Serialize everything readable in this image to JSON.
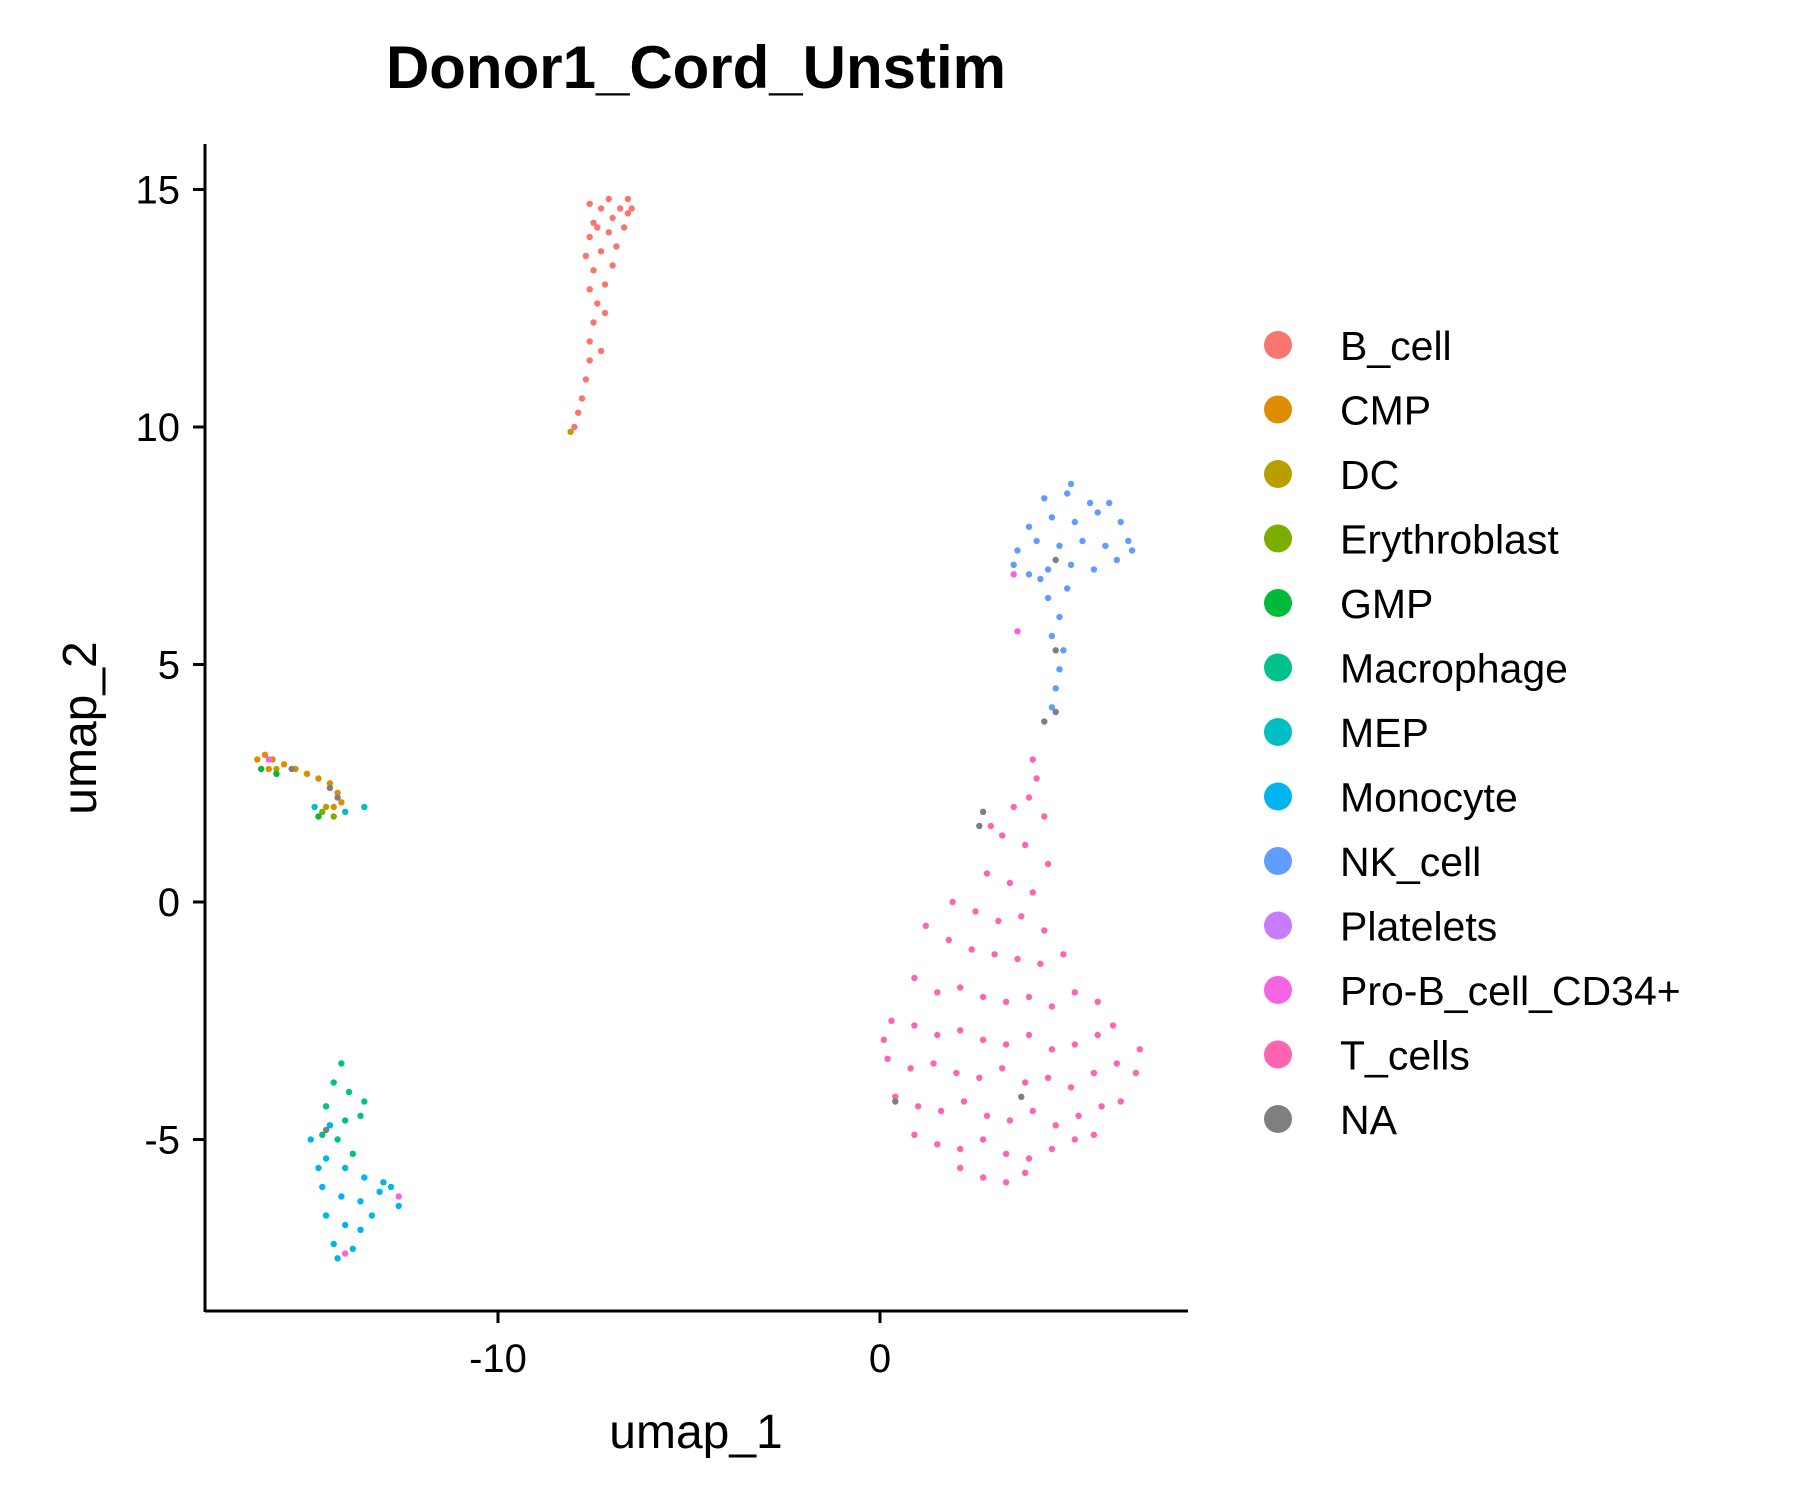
{
  "chart_data": {
    "type": "scatter",
    "title": "Donor1_Cord_Unstim",
    "xlabel": "umap_1",
    "ylabel": "umap_2",
    "xlim": [
      -17.7,
      8.0
    ],
    "ylim": [
      -8.4,
      16.0
    ],
    "xticks": [
      -10,
      0
    ],
    "xtick_labels": [
      "-10",
      "0"
    ],
    "yticks": [
      15,
      10,
      5,
      0,
      -5
    ],
    "ytick_labels": [
      "15",
      "10",
      "5",
      "0",
      "-5"
    ],
    "grid": false,
    "legend_position": "right",
    "legend": [
      {
        "name": "B_cell",
        "color": "#F8766D"
      },
      {
        "name": "CMP",
        "color": "#DE8C00"
      },
      {
        "name": "DC",
        "color": "#B79F00"
      },
      {
        "name": "Erythroblast",
        "color": "#7CAE00"
      },
      {
        "name": "GMP",
        "color": "#00BA38"
      },
      {
        "name": "Macrophage",
        "color": "#00C08B"
      },
      {
        "name": "MEP",
        "color": "#00BFC4"
      },
      {
        "name": "Monocyte",
        "color": "#00B4F0"
      },
      {
        "name": "NK_cell",
        "color": "#619CFF"
      },
      {
        "name": "Platelets",
        "color": "#C77CFF"
      },
      {
        "name": "Pro-B_cell_CD34+",
        "color": "#F564E3"
      },
      {
        "name": "T_cells",
        "color": "#FF64B0"
      },
      {
        "name": "NA",
        "color": "#7F7F7F"
      }
    ],
    "series": [
      {
        "name": "B_cell",
        "color": "#F8766D",
        "points": [
          [
            -8.0,
            10.0
          ],
          [
            -7.9,
            10.3
          ],
          [
            -7.8,
            10.6
          ],
          [
            -7.7,
            11.0
          ],
          [
            -7.6,
            11.4
          ],
          [
            -7.6,
            11.8
          ],
          [
            -7.5,
            12.2
          ],
          [
            -7.4,
            12.6
          ],
          [
            -7.6,
            12.9
          ],
          [
            -7.2,
            13.0
          ],
          [
            -7.5,
            13.3
          ],
          [
            -7.0,
            13.4
          ],
          [
            -7.7,
            13.6
          ],
          [
            -7.3,
            13.7
          ],
          [
            -6.9,
            13.8
          ],
          [
            -7.6,
            14.0
          ],
          [
            -7.1,
            14.1
          ],
          [
            -6.7,
            14.2
          ],
          [
            -7.5,
            14.3
          ],
          [
            -7.0,
            14.4
          ],
          [
            -6.6,
            14.5
          ],
          [
            -7.3,
            14.6
          ],
          [
            -6.8,
            14.6
          ],
          [
            -6.5,
            14.6
          ],
          [
            -7.6,
            14.7
          ],
          [
            -7.1,
            14.8
          ],
          [
            -6.6,
            14.8
          ],
          [
            -7.4,
            14.2
          ],
          [
            -7.2,
            12.4
          ],
          [
            -7.3,
            11.6
          ]
        ]
      },
      {
        "name": "CMP",
        "color": "#DE8C00",
        "points": [
          [
            -16.3,
            3.0
          ],
          [
            -16.1,
            3.1
          ],
          [
            -15.9,
            3.0
          ],
          [
            -15.6,
            2.9
          ],
          [
            -15.3,
            2.8
          ],
          [
            -15.0,
            2.7
          ],
          [
            -14.7,
            2.6
          ],
          [
            -14.4,
            2.5
          ],
          [
            -14.2,
            2.3
          ],
          [
            -14.1,
            2.1
          ],
          [
            -14.3,
            2.0
          ],
          [
            -16.0,
            2.8
          ]
        ]
      },
      {
        "name": "DC",
        "color": "#B79F00",
        "points": [
          [
            -15.8,
            2.8
          ],
          [
            -14.5,
            2.0
          ],
          [
            -8.1,
            9.9
          ]
        ]
      },
      {
        "name": "Erythroblast",
        "color": "#7CAE00",
        "points": [
          [
            -14.6,
            1.9
          ],
          [
            -14.3,
            1.8
          ],
          [
            -14.4,
            -4.7
          ]
        ]
      },
      {
        "name": "GMP",
        "color": "#00BA38",
        "points": [
          [
            -16.2,
            2.8
          ],
          [
            -15.8,
            2.7
          ],
          [
            -14.7,
            1.8
          ]
        ]
      },
      {
        "name": "Macrophage",
        "color": "#00C08B",
        "points": [
          [
            -14.1,
            -3.4
          ],
          [
            -14.3,
            -3.8
          ],
          [
            -13.9,
            -4.0
          ],
          [
            -14.5,
            -4.3
          ],
          [
            -14.0,
            -4.6
          ],
          [
            -13.6,
            -4.5
          ],
          [
            -14.2,
            -5.0
          ],
          [
            -13.8,
            -5.3
          ],
          [
            -14.6,
            -4.9
          ],
          [
            -13.5,
            -4.2
          ]
        ]
      },
      {
        "name": "MEP",
        "color": "#00BFC4",
        "points": [
          [
            -14.8,
            2.0
          ],
          [
            -13.5,
            2.0
          ],
          [
            -14.0,
            1.9
          ]
        ]
      },
      {
        "name": "Monocyte",
        "color": "#00B4F0",
        "points": [
          [
            -14.9,
            -5.0
          ],
          [
            -14.5,
            -5.4
          ],
          [
            -14.0,
            -5.6
          ],
          [
            -13.5,
            -5.8
          ],
          [
            -13.0,
            -5.9
          ],
          [
            -14.6,
            -6.0
          ],
          [
            -14.1,
            -6.2
          ],
          [
            -13.6,
            -6.3
          ],
          [
            -13.1,
            -6.1
          ],
          [
            -14.5,
            -6.6
          ],
          [
            -14.0,
            -6.8
          ],
          [
            -13.6,
            -6.9
          ],
          [
            -14.3,
            -7.2
          ],
          [
            -13.8,
            -7.3
          ],
          [
            -14.2,
            -7.5
          ],
          [
            -12.8,
            -6.0
          ],
          [
            -12.6,
            -6.4
          ],
          [
            -14.7,
            -5.6
          ],
          [
            -13.3,
            -6.6
          ],
          [
            -14.4,
            -4.7
          ]
        ]
      },
      {
        "name": "NK_cell",
        "color": "#619CFF",
        "points": [
          [
            4.5,
            4.1
          ],
          [
            4.6,
            4.5
          ],
          [
            4.7,
            4.9
          ],
          [
            4.8,
            5.3
          ],
          [
            4.5,
            5.6
          ],
          [
            4.7,
            6.0
          ],
          [
            4.4,
            6.4
          ],
          [
            4.9,
            6.6
          ],
          [
            3.9,
            6.9
          ],
          [
            4.4,
            7.0
          ],
          [
            5.0,
            7.1
          ],
          [
            5.6,
            7.0
          ],
          [
            6.2,
            7.2
          ],
          [
            3.6,
            7.4
          ],
          [
            4.1,
            7.6
          ],
          [
            4.7,
            7.5
          ],
          [
            5.3,
            7.6
          ],
          [
            5.9,
            7.5
          ],
          [
            6.5,
            7.6
          ],
          [
            3.9,
            7.9
          ],
          [
            4.5,
            8.1
          ],
          [
            5.1,
            8.0
          ],
          [
            5.7,
            8.2
          ],
          [
            6.3,
            8.0
          ],
          [
            4.3,
            8.5
          ],
          [
            4.9,
            8.6
          ],
          [
            5.5,
            8.4
          ],
          [
            6.0,
            8.4
          ],
          [
            5.0,
            8.8
          ],
          [
            3.5,
            7.1
          ],
          [
            6.6,
            7.4
          ],
          [
            4.2,
            6.8
          ]
        ]
      },
      {
        "name": "Pro-B_cell_CD34+",
        "color": "#F564E3",
        "points": [
          [
            -16.0,
            3.0
          ],
          [
            -14.0,
            -7.4
          ],
          [
            -12.6,
            -6.2
          ],
          [
            3.5,
            6.9
          ],
          [
            3.6,
            5.7
          ]
        ]
      },
      {
        "name": "T_cells",
        "color": "#FF64B0",
        "points": [
          [
            4.0,
            3.0
          ],
          [
            4.1,
            2.6
          ],
          [
            3.9,
            2.2
          ],
          [
            3.5,
            2.0
          ],
          [
            4.3,
            1.8
          ],
          [
            3.2,
            1.4
          ],
          [
            3.8,
            1.2
          ],
          [
            4.4,
            0.8
          ],
          [
            2.8,
            0.6
          ],
          [
            3.4,
            0.4
          ],
          [
            4.0,
            0.2
          ],
          [
            2.5,
            -0.2
          ],
          [
            3.1,
            -0.4
          ],
          [
            3.7,
            -0.3
          ],
          [
            4.3,
            -0.6
          ],
          [
            1.2,
            -0.5
          ],
          [
            1.8,
            -0.8
          ],
          [
            2.4,
            -1.0
          ],
          [
            3.0,
            -1.1
          ],
          [
            3.6,
            -1.2
          ],
          [
            4.2,
            -1.3
          ],
          [
            4.8,
            -1.1
          ],
          [
            0.9,
            -1.6
          ],
          [
            1.5,
            -1.9
          ],
          [
            2.1,
            -1.8
          ],
          [
            2.7,
            -2.0
          ],
          [
            3.3,
            -2.1
          ],
          [
            3.9,
            -2.0
          ],
          [
            4.5,
            -2.2
          ],
          [
            5.1,
            -1.9
          ],
          [
            5.7,
            -2.1
          ],
          [
            0.3,
            -2.5
          ],
          [
            0.9,
            -2.6
          ],
          [
            1.5,
            -2.8
          ],
          [
            2.1,
            -2.7
          ],
          [
            2.7,
            -2.9
          ],
          [
            3.3,
            -3.0
          ],
          [
            3.9,
            -2.8
          ],
          [
            4.5,
            -3.1
          ],
          [
            5.1,
            -3.0
          ],
          [
            5.7,
            -2.8
          ],
          [
            6.1,
            -2.6
          ],
          [
            0.2,
            -3.3
          ],
          [
            0.8,
            -3.5
          ],
          [
            1.4,
            -3.4
          ],
          [
            2.0,
            -3.6
          ],
          [
            2.6,
            -3.7
          ],
          [
            3.2,
            -3.5
          ],
          [
            3.8,
            -3.8
          ],
          [
            4.4,
            -3.7
          ],
          [
            5.0,
            -3.9
          ],
          [
            5.6,
            -3.6
          ],
          [
            6.2,
            -3.4
          ],
          [
            6.7,
            -3.6
          ],
          [
            0.4,
            -4.1
          ],
          [
            1.0,
            -4.3
          ],
          [
            1.6,
            -4.4
          ],
          [
            2.2,
            -4.2
          ],
          [
            2.8,
            -4.5
          ],
          [
            3.4,
            -4.6
          ],
          [
            4.0,
            -4.4
          ],
          [
            4.6,
            -4.7
          ],
          [
            5.2,
            -4.5
          ],
          [
            5.8,
            -4.3
          ],
          [
            6.3,
            -4.2
          ],
          [
            0.9,
            -4.9
          ],
          [
            1.5,
            -5.1
          ],
          [
            2.1,
            -5.2
          ],
          [
            2.7,
            -5.0
          ],
          [
            3.3,
            -5.3
          ],
          [
            3.9,
            -5.4
          ],
          [
            4.5,
            -5.2
          ],
          [
            5.1,
            -5.0
          ],
          [
            5.6,
            -4.9
          ],
          [
            2.1,
            -5.6
          ],
          [
            2.7,
            -5.8
          ],
          [
            3.3,
            -5.9
          ],
          [
            3.8,
            -5.7
          ],
          [
            0.1,
            -2.9
          ],
          [
            6.8,
            -3.1
          ],
          [
            1.9,
            0.0
          ],
          [
            2.9,
            1.6
          ]
        ]
      },
      {
        "name": "NA",
        "color": "#7F7F7F",
        "points": [
          [
            -15.4,
            2.8
          ],
          [
            -14.4,
            2.4
          ],
          [
            -14.2,
            2.2
          ],
          [
            -14.5,
            -4.8
          ],
          [
            4.6,
            4.0
          ],
          [
            4.3,
            3.8
          ],
          [
            4.6,
            5.3
          ],
          [
            2.6,
            1.6
          ],
          [
            2.7,
            1.9
          ],
          [
            4.6,
            7.2
          ],
          [
            0.4,
            -4.2
          ],
          [
            3.7,
            -4.1
          ]
        ]
      }
    ]
  }
}
